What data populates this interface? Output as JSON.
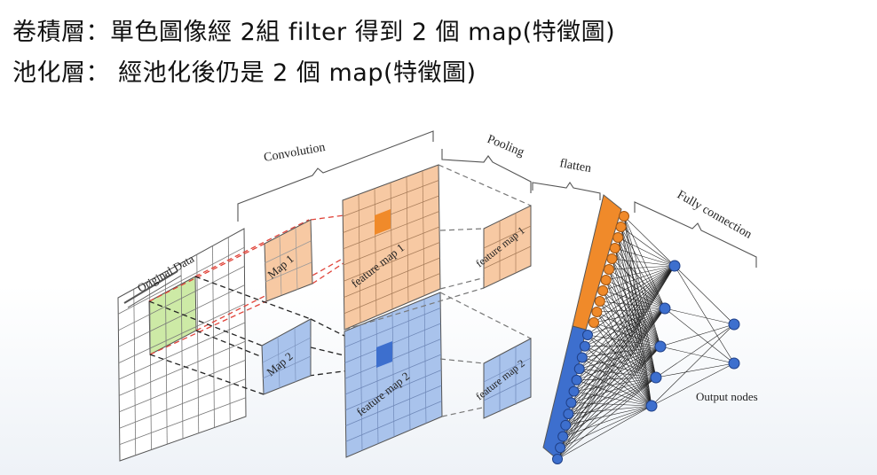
{
  "slide": {
    "line1": "卷積層：單色圖像經 2組 filter 得到 2 個 map(特徵圖)",
    "line2": "池化層： 經池化後仍是 2 個 map(特徵圖)"
  },
  "diagram": {
    "stages": {
      "convolution": "Convolution",
      "pooling": "Pooling",
      "flatten": "flatten",
      "fully_connection": "Fully connection"
    },
    "labels": {
      "original": "Original Data",
      "map1": "Map 1",
      "map2": "Map 2",
      "feature_map1": "feature map 1",
      "feature_map2": "feature map 2",
      "pooled_map1": "feature map 1",
      "pooled_map2": "feature map 2",
      "output": "Output nodes"
    },
    "colors": {
      "orange": "#f7c9a3",
      "orange_dark": "#f08a2a",
      "blue": "#a9c3ec",
      "blue_dark": "#3d6fce",
      "green": "#cdeaa6",
      "red_dash": "#e0443a"
    }
  }
}
